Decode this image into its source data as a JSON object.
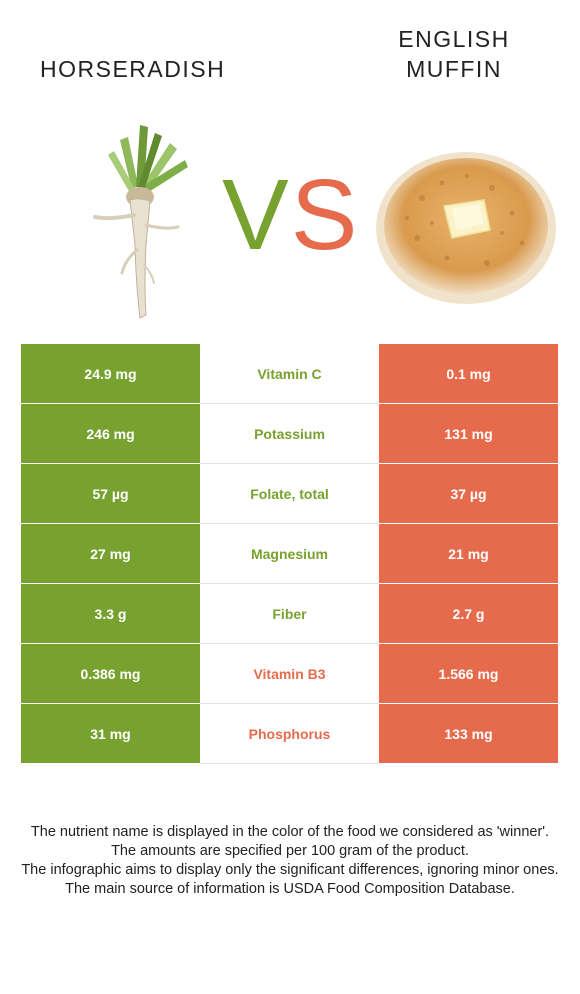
{
  "foods": {
    "left": {
      "name": "Horseradish",
      "color": "#78a22f"
    },
    "right": {
      "name": "English muffin",
      "color": "#e66b4c"
    }
  },
  "vs": {
    "v": "V",
    "s": "S"
  },
  "rows": [
    {
      "nutrient": "Vitamin C",
      "left": "24.9 mg",
      "right": "0.1 mg",
      "winner": "left"
    },
    {
      "nutrient": "Potassium",
      "left": "246 mg",
      "right": "131 mg",
      "winner": "left"
    },
    {
      "nutrient": "Folate, total",
      "left": "57 µg",
      "right": "37 µg",
      "winner": "left"
    },
    {
      "nutrient": "Magnesium",
      "left": "27 mg",
      "right": "21 mg",
      "winner": "left"
    },
    {
      "nutrient": "Fiber",
      "left": "3.3 g",
      "right": "2.7 g",
      "winner": "left"
    },
    {
      "nutrient": "Vitamin B3",
      "left": "0.386 mg",
      "right": "1.566 mg",
      "winner": "right"
    },
    {
      "nutrient": "Phosphorus",
      "left": "31 mg",
      "right": "133 mg",
      "winner": "right"
    }
  ],
  "notes": [
    "The nutrient name is displayed in the color of the food we considered as 'winner'.",
    "The amounts are specified per 100 gram of the product.",
    "The infographic aims to display only the significant differences, ignoring minor ones.",
    "The main source of information is USDA Food Composition Database."
  ]
}
